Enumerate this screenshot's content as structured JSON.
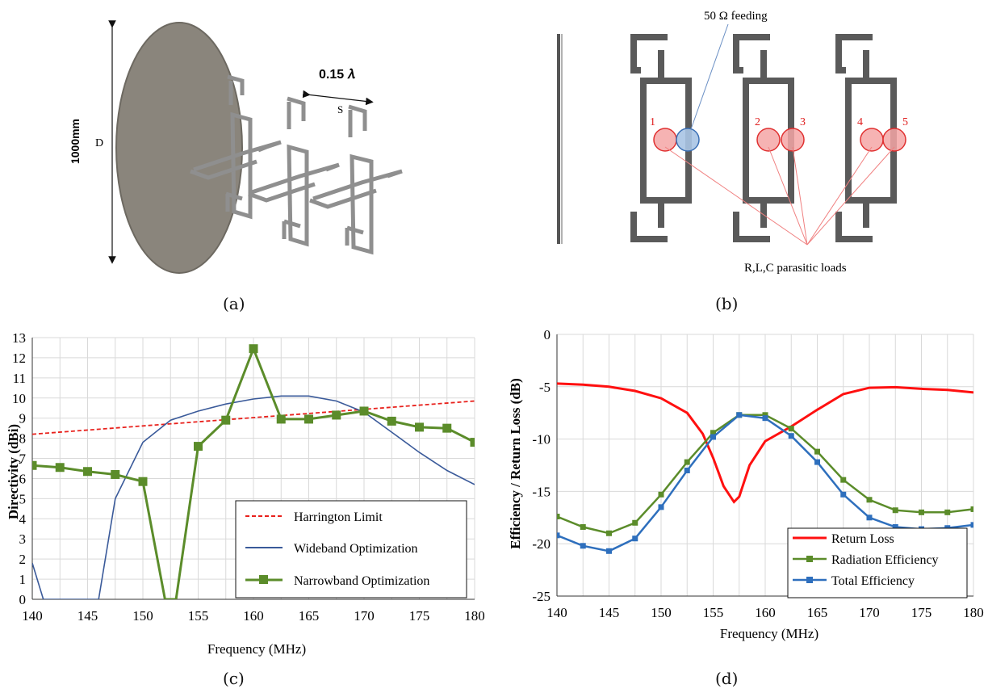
{
  "captions": {
    "a": "(a)",
    "b": "(b)",
    "c": "(c)",
    "d": "(d)"
  },
  "panel_a": {
    "height_label": "1000mm",
    "diameter_label": "D",
    "spacing_label": "0.15 𝜆",
    "spacing_symbol": "S"
  },
  "panel_b": {
    "feed_label": "50 Ω feeding",
    "loads_label": "R,L,C parasitic loads",
    "load_numbers": [
      "1",
      "2",
      "3",
      "4",
      "5"
    ],
    "load_color": "#f4a6a6",
    "feed_color": "#a9c4e4"
  },
  "chart_data": [
    {
      "type": "line",
      "xlabel": "Frequency (MHz)",
      "ylabel": "Directivity (dBi)",
      "xlim": [
        140,
        180
      ],
      "ylim": [
        0,
        13
      ],
      "xticks": [
        "140",
        "145",
        "150",
        "155",
        "160",
        "165",
        "170",
        "175",
        "180"
      ],
      "yticks": [
        "0",
        "1",
        "2",
        "3",
        "4",
        "5",
        "6",
        "7",
        "8",
        "9",
        "10",
        "11",
        "12",
        "13"
      ],
      "grid": true,
      "legend_position": "bottom-right",
      "series": [
        {
          "name": "Harrington Limit",
          "color": "#e8211c",
          "style": "dashed",
          "x": [
            140,
            180
          ],
          "y": [
            8.2,
            9.85
          ]
        },
        {
          "name": "Wideband Optimization",
          "color": "#3a5a9a",
          "style": "solid",
          "x": [
            140,
            141,
            146,
            147.5,
            150,
            152.5,
            155,
            157.5,
            160,
            162.5,
            165,
            167.5,
            170,
            172.5,
            175,
            177.5,
            180
          ],
          "y": [
            1.8,
            0,
            0,
            5.0,
            7.8,
            8.9,
            9.35,
            9.7,
            9.95,
            10.1,
            10.1,
            9.85,
            9.3,
            8.3,
            7.3,
            6.4,
            5.7
          ]
        },
        {
          "name": "Narrowband Optimization",
          "color": "#5b8c2a",
          "style": "solid-square",
          "x": [
            140,
            142.5,
            145,
            147.5,
            150,
            152,
            153,
            155,
            157.5,
            160,
            162.5,
            165,
            167.5,
            170,
            172.5,
            175,
            177.5,
            180
          ],
          "y": [
            6.65,
            6.55,
            6.35,
            6.2,
            5.85,
            0,
            0,
            7.6,
            8.9,
            12.45,
            8.95,
            8.95,
            9.15,
            9.35,
            8.85,
            8.55,
            8.5,
            7.8
          ],
          "markers": [
            true,
            true,
            true,
            true,
            true,
            false,
            false,
            true,
            true,
            true,
            true,
            true,
            true,
            true,
            true,
            true,
            true,
            true
          ]
        }
      ]
    },
    {
      "type": "line",
      "xlabel": "Frequency (MHz)",
      "ylabel": "Efficiency / Return Loss (dB)",
      "xlim": [
        140,
        180
      ],
      "ylim": [
        -25,
        0
      ],
      "xticks": [
        "140",
        "145",
        "150",
        "155",
        "160",
        "165",
        "170",
        "175",
        "180"
      ],
      "yticks": [
        "-25",
        "-20",
        "-15",
        "-10",
        "-5",
        "0"
      ],
      "grid": true,
      "legend_position": "bottom-right",
      "series": [
        {
          "name": "Return Loss",
          "color": "#ff1010",
          "style": "solid",
          "x": [
            140,
            142.5,
            145,
            147.5,
            150,
            152.5,
            154,
            155,
            156,
            157,
            157.5,
            158.5,
            160,
            162.5,
            165,
            167.5,
            170,
            172.5,
            175,
            177.5,
            180
          ],
          "y": [
            -4.7,
            -4.8,
            -5.0,
            -5.4,
            -6.1,
            -7.5,
            -9.5,
            -11.8,
            -14.5,
            -16.0,
            -15.5,
            -12.5,
            -10.2,
            -8.8,
            -7.2,
            -5.7,
            -5.1,
            -5.05,
            -5.2,
            -5.3,
            -5.55
          ]
        },
        {
          "name": "Radiation Efficiency",
          "color": "#5b8c2a",
          "style": "solid-square",
          "x": [
            140,
            142.5,
            145,
            147.5,
            150,
            152.5,
            155,
            157.5,
            160,
            162.5,
            165,
            167.5,
            170,
            172.5,
            175,
            177.5,
            180
          ],
          "y": [
            -17.4,
            -18.4,
            -19.0,
            -18.0,
            -15.3,
            -12.2,
            -9.4,
            -7.7,
            -7.7,
            -9.0,
            -11.2,
            -13.9,
            -15.8,
            -16.8,
            -17.0,
            -17.0,
            -16.7
          ]
        },
        {
          "name": "Total Efficiency",
          "color": "#2e6fbd",
          "style": "solid-square",
          "x": [
            140,
            142.5,
            145,
            147.5,
            150,
            152.5,
            155,
            157.5,
            160,
            162.5,
            165,
            167.5,
            170,
            172.5,
            175,
            177.5,
            180
          ],
          "y": [
            -19.2,
            -20.2,
            -20.7,
            -19.5,
            -16.5,
            -13.0,
            -9.8,
            -7.7,
            -8.0,
            -9.7,
            -12.2,
            -15.3,
            -17.5,
            -18.4,
            -18.6,
            -18.5,
            -18.2
          ]
        }
      ]
    }
  ]
}
